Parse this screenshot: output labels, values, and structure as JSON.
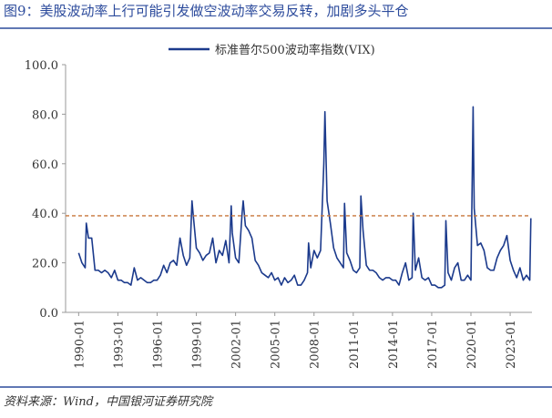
{
  "chart_data": {
    "type": "line",
    "title": "图9：美股波动率上行可能引发做空波动率交易反转，加剧多头平仓",
    "source": "资料来源：Wind，中国银河证券研究院",
    "x": [
      "1990-01",
      "1990-04",
      "1990-07",
      "1990-08",
      "1990-10",
      "1991-01",
      "1991-04",
      "1991-07",
      "1991-10",
      "1992-01",
      "1992-04",
      "1992-07",
      "1992-10",
      "1993-01",
      "1993-04",
      "1993-07",
      "1993-10",
      "1994-01",
      "1994-04",
      "1994-07",
      "1994-10",
      "1995-01",
      "1995-04",
      "1995-07",
      "1995-10",
      "1996-01",
      "1996-04",
      "1996-07",
      "1996-10",
      "1997-01",
      "1997-04",
      "1997-07",
      "1997-10",
      "1998-01",
      "1998-04",
      "1998-07",
      "1998-09",
      "1998-10",
      "1999-01",
      "1999-04",
      "1999-07",
      "1999-10",
      "2000-01",
      "2000-04",
      "2000-07",
      "2000-10",
      "2001-01",
      "2001-04",
      "2001-07",
      "2001-09",
      "2001-10",
      "2002-01",
      "2002-04",
      "2002-07",
      "2002-08",
      "2002-10",
      "2003-01",
      "2003-04",
      "2003-07",
      "2003-10",
      "2004-01",
      "2004-04",
      "2004-07",
      "2004-10",
      "2005-01",
      "2005-04",
      "2005-07",
      "2005-10",
      "2006-01",
      "2006-04",
      "2006-07",
      "2006-10",
      "2007-01",
      "2007-04",
      "2007-07",
      "2007-08",
      "2007-10",
      "2008-01",
      "2008-04",
      "2008-07",
      "2008-10",
      "2008-11",
      "2009-01",
      "2009-04",
      "2009-07",
      "2009-10",
      "2010-01",
      "2010-04",
      "2010-05",
      "2010-07",
      "2010-10",
      "2011-01",
      "2011-04",
      "2011-07",
      "2011-08",
      "2011-10",
      "2012-01",
      "2012-04",
      "2012-07",
      "2012-10",
      "2013-01",
      "2013-04",
      "2013-07",
      "2013-10",
      "2014-01",
      "2014-04",
      "2014-07",
      "2014-10",
      "2015-01",
      "2015-04",
      "2015-07",
      "2015-08",
      "2015-10",
      "2016-01",
      "2016-04",
      "2016-07",
      "2016-10",
      "2017-01",
      "2017-04",
      "2017-07",
      "2017-10",
      "2018-01",
      "2018-02",
      "2018-04",
      "2018-07",
      "2018-10",
      "2019-01",
      "2019-04",
      "2019-07",
      "2019-10",
      "2020-01",
      "2020-03",
      "2020-04",
      "2020-07",
      "2020-10",
      "2021-01",
      "2021-04",
      "2021-07",
      "2021-10",
      "2022-01",
      "2022-04",
      "2022-07",
      "2022-10",
      "2023-01",
      "2023-04",
      "2023-07",
      "2023-10",
      "2024-01",
      "2024-04",
      "2024-07",
      "2024-08"
    ],
    "series": [
      {
        "name": "标准普尔500波动率指数(VIX)",
        "color": "#1b3a8c",
        "values": [
          24,
          20,
          18,
          36,
          30,
          30,
          17,
          17,
          16,
          17,
          16,
          14,
          17,
          13,
          13,
          12,
          12,
          11,
          18,
          13,
          14,
          13,
          12,
          12,
          13,
          13,
          15,
          19,
          16,
          20,
          21,
          19,
          30,
          23,
          19,
          22,
          45,
          40,
          26,
          24,
          21,
          23,
          24,
          30,
          20,
          25,
          23,
          29,
          20,
          43,
          32,
          22,
          20,
          40,
          45,
          35,
          33,
          30,
          21,
          19,
          16,
          15,
          14,
          16,
          13,
          14,
          11,
          14,
          12,
          13,
          15,
          11,
          11,
          13,
          16,
          28,
          18,
          25,
          22,
          25,
          60,
          81,
          45,
          36,
          26,
          22,
          20,
          18,
          44,
          24,
          21,
          17,
          16,
          18,
          47,
          33,
          19,
          17,
          17,
          16,
          14,
          13,
          14,
          14,
          13,
          13,
          11,
          16,
          20,
          13,
          14,
          40,
          17,
          22,
          14,
          13,
          14,
          11,
          11,
          10,
          10,
          11,
          37,
          16,
          13,
          18,
          20,
          13,
          13,
          15,
          13,
          83,
          42,
          27,
          28,
          25,
          18,
          17,
          17,
          22,
          25,
          27,
          31,
          21,
          17,
          14,
          18,
          13,
          15,
          13,
          38
        ]
      }
    ],
    "xlim": [
      "1989-01",
      "2024-09"
    ],
    "xticks": [
      "1990-01",
      "1993-01",
      "1996-01",
      "1999-01",
      "2002-01",
      "2005-01",
      "2008-01",
      "2011-01",
      "2014-01",
      "2017-01",
      "2020-01",
      "2023-01"
    ],
    "ylim": [
      0,
      100
    ],
    "yticks": [
      {
        "value": 0,
        "label": "0.0"
      },
      {
        "value": 20,
        "label": "20.0"
      },
      {
        "value": 40,
        "label": "40.0"
      },
      {
        "value": 60,
        "label": "60.0"
      },
      {
        "value": 80,
        "label": "80.0"
      },
      {
        "value": 100,
        "label": "100.0"
      }
    ],
    "reference_line": {
      "value": 39,
      "color": "#c8763a"
    }
  }
}
